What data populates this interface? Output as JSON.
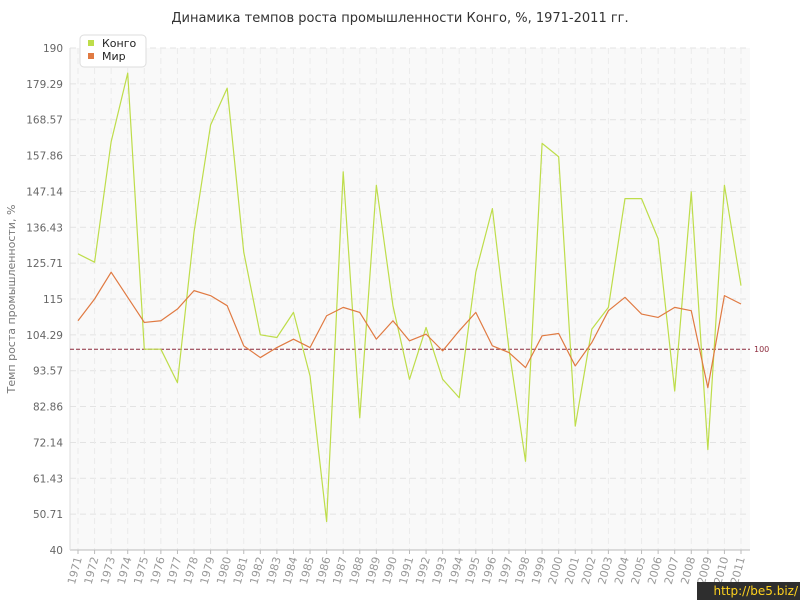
{
  "chart_data": {
    "type": "line",
    "title": "Динамика темпов роста промышленности Конго, %, 1971-2011 гг.",
    "xlabel": "",
    "ylabel": "Темп роста промышленности, %",
    "ylim": [
      40,
      190
    ],
    "yticks": [
      "40",
      "50.71",
      "61.43",
      "72.14",
      "82.86",
      "93.57",
      "104.29",
      "115",
      "125.71",
      "136.43",
      "147.14",
      "157.86",
      "168.57",
      "179.29",
      "190"
    ],
    "x": [
      "1971",
      "1972",
      "1973",
      "1974",
      "1975",
      "1976",
      "1977",
      "1978",
      "1979",
      "1980",
      "1981",
      "1982",
      "1983",
      "1984",
      "1985",
      "1986",
      "1987",
      "1988",
      "1989",
      "1990",
      "1991",
      "1992",
      "1993",
      "1994",
      "1995",
      "1996",
      "1997",
      "1998",
      "1999",
      "2000",
      "2001",
      "2002",
      "2003",
      "2004",
      "2005",
      "2006",
      "2007",
      "2008",
      "2009",
      "2010",
      "2011"
    ],
    "series": [
      {
        "name": "Конго",
        "color": "#bedd4a",
        "values": [
          128.5,
          126,
          162,
          182.5,
          100,
          100,
          90,
          135,
          167,
          178,
          129,
          104.3,
          103.5,
          111,
          92,
          48.5,
          153,
          79.5,
          149,
          113,
          91,
          106.5,
          91,
          85.5,
          123,
          142,
          100,
          66.5,
          161.5,
          157.5,
          77,
          106,
          112.5,
          145,
          145,
          133,
          87.5,
          147,
          70,
          149,
          119
        ]
      },
      {
        "name": "Мир",
        "color": "#e07a42",
        "values": [
          108.5,
          115,
          123,
          115.5,
          108,
          108.5,
          112,
          117.5,
          116,
          113,
          101,
          97.5,
          100.5,
          103,
          100.5,
          110,
          112.5,
          111,
          103,
          108.5,
          102.5,
          104.5,
          99.5,
          105.5,
          111,
          101,
          99,
          94.5,
          104,
          104.7,
          95,
          102,
          111.5,
          115.5,
          110.5,
          109.5,
          112.5,
          111.5,
          88.5,
          116,
          113.5
        ]
      }
    ],
    "reference_line": {
      "value": 100,
      "label": "100",
      "color": "#8c2a3c"
    },
    "legend": {
      "placement": "top-left",
      "entries": [
        "Конго",
        "Мир"
      ]
    },
    "grid": true
  },
  "watermark": "http://be5.biz/"
}
